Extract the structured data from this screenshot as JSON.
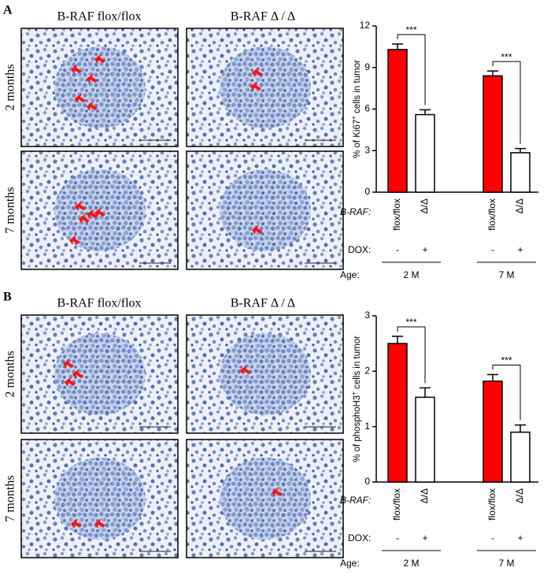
{
  "panels": [
    {
      "label": "A",
      "columns": [
        "B-RAF flox/flox",
        "B-RAF Δ / Δ"
      ],
      "rows": [
        "2 months",
        "7 months"
      ]
    },
    {
      "label": "B",
      "columns": [
        "B-RAF flox/flox",
        "B-RAF Δ / Δ"
      ],
      "rows": [
        "2 months",
        "7 months"
      ]
    }
  ],
  "chart_data": [
    {
      "type": "bar",
      "y_label": [
        "% of Ki67",
        "+",
        " cells in tumor"
      ],
      "categories": [
        "flox/flox",
        "Δ/Δ",
        "flox/flox",
        "Δ/Δ"
      ],
      "values": [
        10.3,
        5.6,
        8.4,
        2.85
      ],
      "errors": [
        0.4,
        0.35,
        0.35,
        0.3
      ],
      "colors": [
        "#ff0000",
        "#ffffff",
        "#ff0000",
        "#ffffff"
      ],
      "ylim": [
        0,
        12
      ],
      "yticks": [
        0,
        3,
        6,
        9,
        12
      ],
      "row_labels": [
        "B-RAF:",
        "DOX:",
        "Age:"
      ],
      "dox": [
        "-",
        "+",
        "-",
        "+"
      ],
      "groups": [
        "2 M",
        "7 M"
      ],
      "significance": [
        "***",
        "***"
      ]
    },
    {
      "type": "bar",
      "y_label": [
        "% of phosphoH3",
        "+",
        " cells in tumor"
      ],
      "categories": [
        "flox/flox",
        "Δ/Δ",
        "flox/flox",
        "Δ/Δ"
      ],
      "values": [
        2.5,
        1.53,
        1.82,
        0.9
      ],
      "errors": [
        0.13,
        0.17,
        0.12,
        0.13
      ],
      "colors": [
        "#ff0000",
        "#ffffff",
        "#ff0000",
        "#ffffff"
      ],
      "ylim": [
        0,
        3
      ],
      "yticks": [
        0,
        1,
        2,
        3
      ],
      "row_labels": [
        "B-RAF:",
        "DOX:",
        "Age:"
      ],
      "dox": [
        "-",
        "+",
        "-",
        "+"
      ],
      "groups": [
        "2 M",
        "7 M"
      ],
      "significance": [
        "***",
        "***"
      ]
    }
  ]
}
